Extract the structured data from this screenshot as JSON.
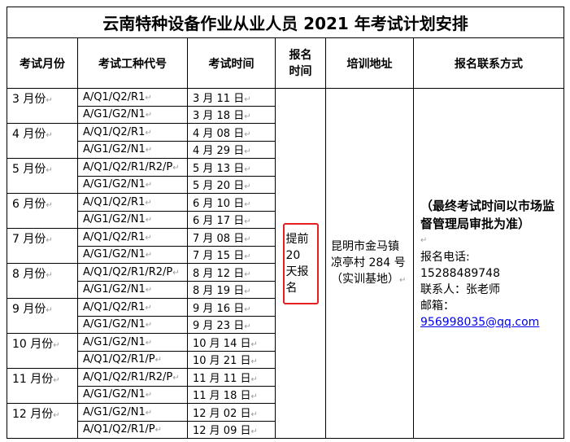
{
  "title": "云南特种设备作业从业人员 2021 年考试计划安排",
  "headers": [
    "考试月份",
    "考试工种代号",
    "考试时间",
    "报名时间",
    "培训地址",
    "报名联系方式"
  ],
  "months": [
    {
      "month": "3 月份",
      "rows": [
        [
          "A/Q1/Q2/R1",
          "3 月 11 日"
        ],
        [
          "A/G1/G2/N1",
          "3 月 18 日"
        ]
      ]
    },
    {
      "month": "4 月份",
      "rows": [
        [
          "A/Q1/Q2/R1",
          "4 月 08 日"
        ],
        [
          "A/G1/G2/N1",
          "4 月 29 日"
        ]
      ]
    },
    {
      "month": "5 月份",
      "rows": [
        [
          "A/Q1/Q2/R1/R2/P",
          "5 月 13 日"
        ],
        [
          "A/G1/G2/N1",
          "5 月 20 日"
        ]
      ]
    },
    {
      "month": "6 月份",
      "rows": [
        [
          "A/Q1/Q2/R1",
          "6 月 10 日"
        ],
        [
          "A/G1/G2/N1",
          "6 月 17 日"
        ]
      ]
    },
    {
      "month": "7 月份",
      "rows": [
        [
          "A/Q1/Q2/R1",
          "7 月 08 日"
        ],
        [
          "A/G1/G2/N1",
          "7 月 15 日"
        ]
      ]
    },
    {
      "month": "8 月份",
      "rows": [
        [
          "A/Q1/Q2/R1/R2/P",
          "8 月 12 日"
        ],
        [
          "A/G1/G2/N1",
          "8 月 19 日"
        ]
      ]
    },
    {
      "month": "9 月份",
      "rows": [
        [
          "A/Q1/Q2/R1",
          "9 月 16 日"
        ],
        [
          "A/G1/G2/N1",
          "9 月 23 日"
        ]
      ]
    },
    {
      "month": "10 月份",
      "rows": [
        [
          "A/G1/G2/N1",
          "10 月 14 日"
        ],
        [
          "A/Q1/Q2/R1/P",
          "10 月 21 日"
        ]
      ]
    },
    {
      "month": "11 月份",
      "rows": [
        [
          "A/Q1/Q2/R1/R2/P",
          "11 月 11 日"
        ],
        [
          "A/G1/G2/N1",
          "11 月 18 日"
        ]
      ]
    },
    {
      "month": "12 月份",
      "rows": [
        [
          "A/G1/G2/N1",
          "12 月 02 日"
        ],
        [
          "A/Q1/Q2/R1/P",
          "12 月 09 日"
        ]
      ]
    }
  ],
  "registration": "提前 20 天报名",
  "address": "昆明市金马镇凉亭村 284 号（实训基地）",
  "contact": {
    "note": "（最终考试时间以市场监督管理局审批为准）",
    "phone_label": "报名电话:",
    "phone": "15288489748",
    "person": "联系人：张老师",
    "email_label": "邮箱：",
    "email": "956998035@qq.com"
  },
  "colors": {
    "highlight_box": "#e62020",
    "link": "#0000ee"
  }
}
